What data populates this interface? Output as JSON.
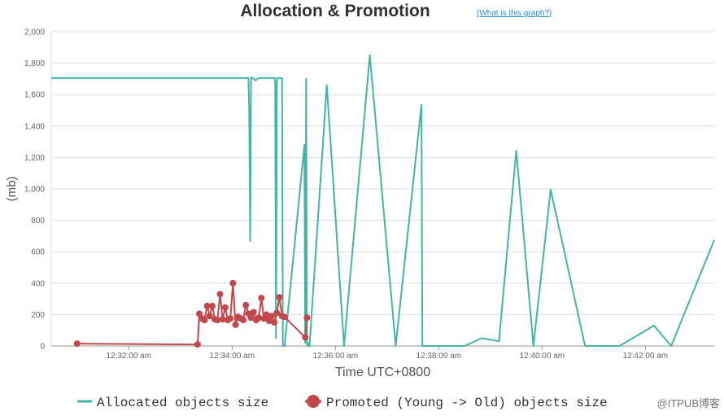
{
  "title": "Allocation & Promotion",
  "help_link": "(What is this graph?)",
  "watermark": "@ITPUB博客",
  "colors": {
    "allocated": "#45b3a7",
    "promoted": "#c1484b",
    "grid": "#dddddd",
    "axis": "#999999"
  },
  "chart_data": {
    "type": "line",
    "xlabel": "Time UTC+0800",
    "ylabel": "(mb)",
    "ylim": [
      0,
      2000
    ],
    "xlim": [
      "12:30:30 am",
      "12:43:20 am"
    ],
    "y_ticks": [
      "0",
      "200",
      "400",
      "600",
      "800",
      "1,000",
      "1,200",
      "1,400",
      "1,600",
      "1,800",
      "2,000"
    ],
    "x_ticks": [
      "12:32:00 am",
      "12:34:00 am",
      "12:36:00 am",
      "12:38:00 am",
      "12:40:00 am",
      "12:42:00 am"
    ],
    "grid": true,
    "legend_position": "bottom",
    "series": [
      {
        "name": "Allocated objects size",
        "marker": "none",
        "x": [
          "12:30:30 am",
          "12:34:19 am",
          "12:34:20 am",
          "12:34:21 am",
          "12:34:22 am",
          "12:34:23 am",
          "12:34:24 am",
          "12:34:27 am",
          "12:34:31 am",
          "12:34:33 am",
          "12:34:50 am",
          "12:34:51 am",
          "12:34:52 am",
          "12:34:53 am",
          "12:34:54 am",
          "12:34:55 am",
          "12:34:58 am",
          "12:34:59 am",
          "12:35:00 am",
          "12:35:01 am",
          "12:35:24 am",
          "12:35:25 am",
          "12:35:26 am",
          "12:35:27 am",
          "12:35:28 am",
          "12:35:29 am",
          "12:35:30 am",
          "12:35:50 am",
          "12:36:10 am",
          "12:36:40 am",
          "12:37:10 am",
          "12:37:40 am",
          "12:37:41 am",
          "12:38:30 am",
          "12:38:50 am",
          "12:39:10 am",
          "12:39:30 am",
          "12:39:50 am",
          "12:40:10 am",
          "12:40:50 am",
          "12:40:51 am",
          "12:41:30 am",
          "12:42:10 am",
          "12:42:30 am",
          "12:43:20 am"
        ],
        "y": [
          1705,
          1705,
          1480,
          670,
          1705,
          1710,
          1705,
          1690,
          1705,
          1705,
          1705,
          50,
          1680,
          1705,
          1705,
          1705,
          1705,
          0,
          0,
          0,
          1280,
          20,
          1700,
          0,
          20,
          0,
          0,
          1660,
          0,
          1850,
          0,
          1535,
          0,
          0,
          50,
          30,
          1245,
          0,
          995,
          0,
          0,
          0,
          130,
          0,
          675
        ]
      },
      {
        "name": "Promoted (Young -> Old) objects size",
        "marker": "circle",
        "x": [
          "12:31:00 am",
          "12:33:20 am",
          "12:33:22 am",
          "12:33:25 am",
          "12:33:28 am",
          "12:33:31 am",
          "12:33:34 am",
          "12:33:37 am",
          "12:33:40 am",
          "12:33:43 am",
          "12:33:46 am",
          "12:33:49 am",
          "12:33:52 am",
          "12:33:55 am",
          "12:33:58 am",
          "12:34:01 am",
          "12:34:04 am",
          "12:34:07 am",
          "12:34:10 am",
          "12:34:13 am",
          "12:34:16 am",
          "12:34:19 am",
          "12:34:22 am",
          "12:34:25 am",
          "12:34:28 am",
          "12:34:31 am",
          "12:34:34 am",
          "12:34:37 am",
          "12:34:40 am",
          "12:34:43 am",
          "12:34:46 am",
          "12:34:49 am",
          "12:34:52 am",
          "12:34:55 am",
          "12:34:58 am",
          "12:35:01 am",
          "12:35:25 am",
          "12:35:27 am"
        ],
        "y": [
          15,
          10,
          205,
          175,
          165,
          255,
          190,
          255,
          170,
          165,
          330,
          170,
          245,
          165,
          175,
          400,
          135,
          185,
          175,
          165,
          260,
          205,
          180,
          215,
          165,
          180,
          305,
          175,
          200,
          160,
          190,
          150,
          210,
          310,
          190,
          185,
          55,
          180
        ]
      }
    ]
  }
}
